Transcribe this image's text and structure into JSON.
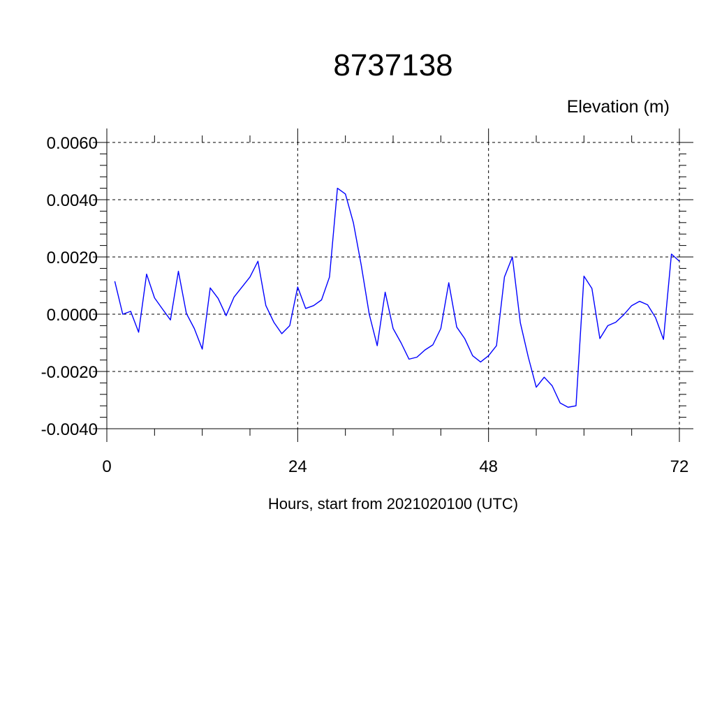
{
  "chart_data": {
    "type": "line",
    "title": "8737138",
    "ylabel": "Elevation (m)",
    "xlabel": "Hours, start from 2021020100 (UTC)",
    "xlim": [
      0,
      72
    ],
    "ylim": [
      -0.004,
      0.006
    ],
    "x_ticks": [
      0,
      24,
      48,
      72
    ],
    "x_tick_labels": [
      "0",
      "24",
      "48",
      "72"
    ],
    "y_ticks": [
      -0.004,
      -0.002,
      0.0,
      0.002,
      0.004,
      0.006
    ],
    "y_tick_labels": [
      "-0.0040",
      "-0.0020",
      "0.0000",
      "0.0020",
      "0.0040",
      "0.0060"
    ],
    "grid": true,
    "series": [
      {
        "color": "#0000ff",
        "x": [
          1,
          2,
          3,
          4,
          5,
          6,
          7,
          8,
          9,
          10,
          11,
          12,
          13,
          14,
          15,
          16,
          17,
          18,
          19,
          20,
          21,
          22,
          23,
          24,
          25,
          26,
          27,
          28,
          29,
          30,
          31,
          32,
          33,
          34,
          35,
          36,
          37,
          38,
          39,
          40,
          41,
          42,
          43,
          44,
          45,
          46,
          47,
          48,
          49,
          50,
          51,
          52,
          53,
          54,
          55,
          56,
          57,
          58,
          59,
          60,
          61,
          62,
          63,
          64,
          65,
          66,
          67,
          68,
          69,
          70,
          71,
          72
        ],
        "values": [
          0.00115,
          0.0,
          0.0001,
          -0.00063,
          0.0014,
          0.00057,
          0.00018,
          -0.0002,
          0.0015,
          3e-05,
          -0.0005,
          -0.00122,
          0.00092,
          0.00055,
          -5e-05,
          0.0006,
          0.00095,
          0.0013,
          0.00185,
          0.0003,
          -0.00028,
          -0.00068,
          -0.0004,
          0.00095,
          0.0002,
          0.0003,
          0.0005,
          0.0013,
          0.0044,
          0.0042,
          0.0032,
          0.0017,
          0.0,
          -0.0011,
          0.00077,
          -0.0005,
          -0.001,
          -0.00157,
          -0.0015,
          -0.00125,
          -0.00107,
          -0.0005,
          0.0011,
          -0.00045,
          -0.00085,
          -0.00145,
          -0.00167,
          -0.00145,
          -0.0011,
          0.0013,
          0.002,
          -0.0003,
          -0.0015,
          -0.00255,
          -0.0022,
          -0.0025,
          -0.0031,
          -0.00325,
          -0.0032,
          0.00133,
          0.0009,
          -0.00085,
          -0.0004,
          -0.00028,
          -2e-05,
          0.0003,
          0.00045,
          0.00033,
          -0.00012,
          -0.00088,
          0.0021,
          0.00185
        ]
      }
    ]
  }
}
